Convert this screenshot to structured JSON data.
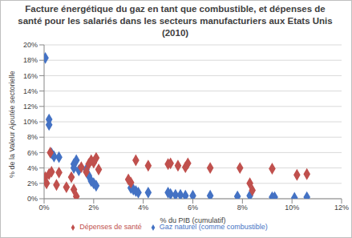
{
  "chart_data": {
    "type": "scatter",
    "title": "Facture énergétique du gaz en tant que combustible, et dépenses de santé pour les salariés dans les secteurs manufacturiers aux Etats Unis (2010)",
    "x_label": "% du PIB (cumulatif)",
    "y_label": "% de la Valeur Ajoutée sectorielle",
    "xlim": [
      0,
      12
    ],
    "xticks": [
      {
        "value": 0,
        "label": "0%"
      },
      {
        "value": 2,
        "label": "2%"
      },
      {
        "value": 4,
        "label": "4%"
      },
      {
        "value": 6,
        "label": "6%"
      },
      {
        "value": 8,
        "label": "8%"
      },
      {
        "value": 10,
        "label": "10%"
      },
      {
        "value": 12,
        "label": "12%"
      }
    ],
    "ylim": [
      0,
      20
    ],
    "yticks": [
      {
        "value": 0,
        "label": "0%"
      },
      {
        "value": 2,
        "label": "2%"
      },
      {
        "value": 4,
        "label": "4%"
      },
      {
        "value": 6,
        "label": "6%"
      },
      {
        "value": 8,
        "label": "8%"
      },
      {
        "value": 10,
        "label": "10%"
      },
      {
        "value": 12,
        "label": "12%"
      },
      {
        "value": 14,
        "label": "14%"
      },
      {
        "value": 16,
        "label": "16%"
      },
      {
        "value": 18,
        "label": "18%"
      },
      {
        "value": 20,
        "label": "20%"
      }
    ],
    "grid": true,
    "legend": "bottom",
    "series": [
      {
        "name": "Gaz naturel (comme combustible)",
        "color": "#4472c4",
        "marker": "diamond",
        "x": [
          0.05,
          0.2,
          0.2,
          0.3,
          0.4,
          0.6,
          1.2,
          1.3,
          1.2,
          1.4,
          1.7,
          1.8,
          1.9,
          2.0,
          2.1,
          3.5,
          3.6,
          3.7,
          3.8,
          4.2,
          5.0,
          5.1,
          5.3,
          5.5,
          5.7,
          6.0,
          6.7,
          7.8,
          8.3,
          9.2,
          9.3,
          10.1,
          10.6
        ],
        "values": [
          18.3,
          10.3,
          9.6,
          5.9,
          5.5,
          5.4,
          4.5,
          5.0,
          4.0,
          3.7,
          3.8,
          3.0,
          2.3,
          2.0,
          1.7,
          1.4,
          1.2,
          1.0,
          0.8,
          0.8,
          0.8,
          0.6,
          0.5,
          0.5,
          0.4,
          0.4,
          0.4,
          0.3,
          0.4,
          0.2,
          0.2,
          0.1,
          0.2
        ]
      },
      {
        "name": "Dépenses de santé",
        "color": "#c0504d",
        "marker": "diamond",
        "x": [
          0.05,
          0.1,
          0.2,
          0.25,
          0.3,
          0.5,
          0.6,
          0.9,
          1.1,
          1.2,
          1.3,
          1.5,
          1.7,
          1.8,
          1.9,
          2.0,
          2.1,
          2.2,
          3.4,
          3.5,
          3.7,
          4.2,
          5.0,
          5.1,
          5.4,
          5.7,
          5.8,
          6.7,
          7.9,
          8.3,
          8.4,
          9.2,
          10.2,
          10.6
        ],
        "values": [
          2.8,
          2.0,
          3.2,
          6.0,
          3.5,
          1.8,
          3.4,
          1.5,
          2.8,
          1.2,
          0.3,
          4.1,
          3.5,
          4.5,
          5.0,
          4.7,
          5.3,
          3.8,
          2.5,
          2.1,
          5.0,
          4.3,
          4.5,
          4.6,
          4.3,
          4.1,
          4.6,
          4.0,
          4.0,
          2.0,
          1.1,
          3.9,
          3.1,
          3.2
        ]
      }
    ]
  }
}
